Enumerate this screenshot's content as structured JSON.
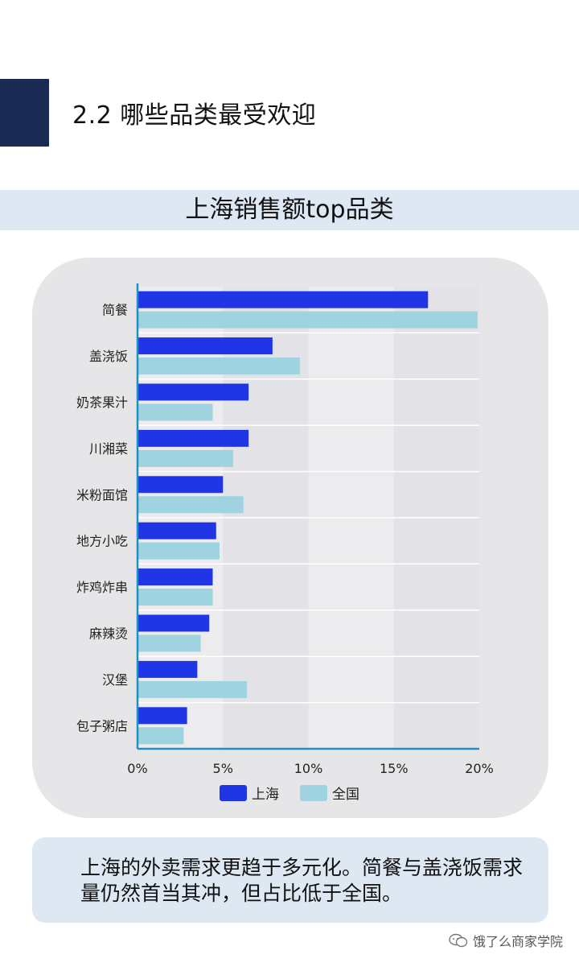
{
  "header": {
    "section_title": "2.2 哪些品类最受欢迎"
  },
  "subtitle": "上海销售额top品类",
  "note": "上海的外卖需求更趋于多元化。简餐与盖浇饭需求量仍然首当其冲，但占比低于全国。",
  "watermark": "饿了么商家学院",
  "colors": {
    "navy": "#1a2a52",
    "shanghai": "#1f35e6",
    "national": "#9fd3df",
    "panel": "#e6e5e8",
    "axis": "#1f8fc4"
  },
  "chart_data": {
    "type": "bar",
    "orientation": "horizontal",
    "title": "上海销售额top品类",
    "categories": [
      "简餐",
      "盖浇饭",
      "奶茶果汁",
      "川湘菜",
      "米粉面馆",
      "地方小吃",
      "炸鸡炸串",
      "麻辣烫",
      "汉堡",
      "包子粥店"
    ],
    "series": [
      {
        "name": "上海",
        "color": "#1f35e6",
        "values": [
          17.0,
          7.9,
          6.5,
          6.5,
          5.0,
          4.6,
          4.4,
          4.2,
          3.5,
          2.9
        ]
      },
      {
        "name": "全国",
        "color": "#9fd3df",
        "values": [
          19.9,
          9.5,
          4.4,
          5.6,
          6.2,
          4.8,
          4.4,
          3.7,
          6.4,
          2.7
        ]
      }
    ],
    "xlim": [
      0,
      20
    ],
    "xticks": [
      "0%",
      "5%",
      "10%",
      "15%",
      "20%"
    ],
    "grid": true,
    "legend": "bottom"
  }
}
